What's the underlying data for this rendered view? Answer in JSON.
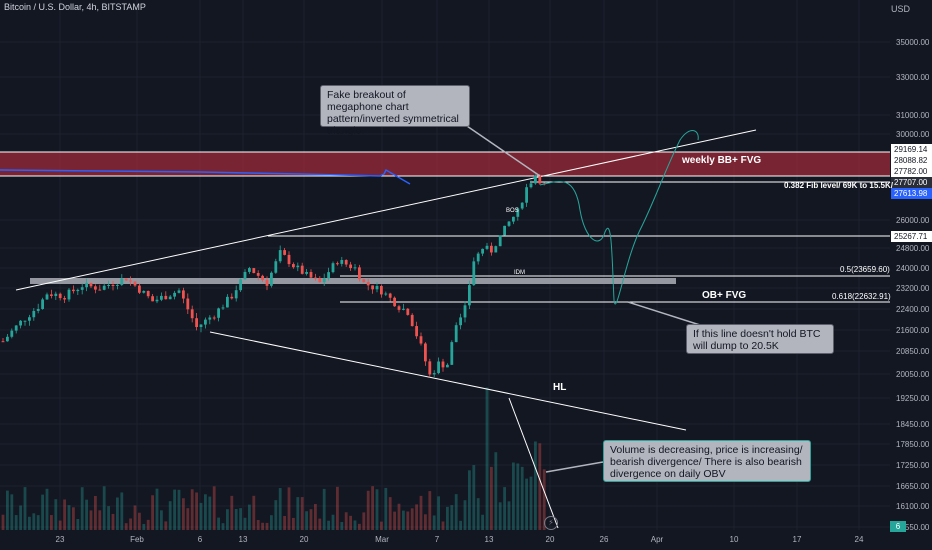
{
  "header": {
    "symbol": "Bitcoin / U.S. Dollar, 4h, BITSTAMP",
    "currency": "USD"
  },
  "colors": {
    "bg": "#131722",
    "up": "#26a69a",
    "down": "#ef5350",
    "zone": "#9c2a39",
    "white": "#ffffff"
  },
  "chart_data": {
    "type": "candlestick",
    "x_ticks": [
      "23",
      "Feb",
      "6",
      "13",
      "20",
      "Mar",
      "7",
      "13",
      "20",
      "26",
      "Apr",
      "10",
      "17",
      "24"
    ],
    "y_ticks": [
      35000,
      33000,
      31000,
      30000,
      26000,
      24800,
      24000,
      23200,
      22400,
      21600,
      20850,
      20050,
      19250,
      18450,
      17850,
      17250,
      16650,
      16100,
      15550
    ],
    "y_tick_labels": [
      "35000.00",
      "33000.00",
      "31000.00",
      "30000.00",
      "26000.00",
      "24800.00",
      "24000.00",
      "23200.00",
      "22400.00",
      "21600.00",
      "20850.00",
      "20050.00",
      "19250.00",
      "18450.00",
      "17850.00",
      "17250.00",
      "16650.00",
      "16100.00",
      "15550.00"
    ],
    "price_path": [
      [
        0,
        21200
      ],
      [
        4,
        21900
      ],
      [
        8,
        22500
      ],
      [
        10,
        23000
      ],
      [
        14,
        22900
      ],
      [
        18,
        23300
      ],
      [
        22,
        23200
      ],
      [
        28,
        23600
      ],
      [
        34,
        22700
      ],
      [
        40,
        23100
      ],
      [
        44,
        21700
      ],
      [
        48,
        22200
      ],
      [
        52,
        22900
      ],
      [
        56,
        24000
      ],
      [
        60,
        23400
      ],
      [
        63,
        24600
      ],
      [
        66,
        24100
      ],
      [
        69,
        23700
      ],
      [
        72,
        23400
      ],
      [
        76,
        24300
      ],
      [
        80,
        24000
      ],
      [
        82,
        23400
      ],
      [
        86,
        23100
      ],
      [
        90,
        22500
      ],
      [
        92,
        22300
      ],
      [
        95,
        21000
      ],
      [
        97,
        20000
      ],
      [
        99,
        20400
      ],
      [
        101,
        20400
      ],
      [
        103,
        21800
      ],
      [
        105,
        22400
      ],
      [
        107,
        24300
      ],
      [
        109,
        24800
      ],
      [
        111,
        24700
      ],
      [
        113,
        25300
      ],
      [
        115,
        25900
      ],
      [
        117,
        26400
      ],
      [
        119,
        27500
      ],
      [
        121,
        28100
      ],
      [
        123,
        27600
      ]
    ],
    "price_tags": [
      {
        "label": "29169.14",
        "value": 29169.14,
        "style": "white"
      },
      {
        "label": "28088.82",
        "value": 28088.82,
        "style": "white"
      },
      {
        "label": "27782.00",
        "value": 27782.0,
        "style": "white"
      },
      {
        "label": "27707.00",
        "value": 27707.0,
        "style": "dark"
      },
      {
        "label": "27613.98",
        "value": 27613.98,
        "style": "blue"
      },
      {
        "label": "25267.71",
        "value": 25267.71,
        "style": "white"
      }
    ],
    "volume_badge": "6"
  },
  "annotations": {
    "megaphone": "Fake breakout of megaphone chart pattern/inverted symmetrical triangle.",
    "weekly_fvg": "weekly BB+ FVG",
    "fib_382": "0.382 Fib level/ 69K to 15.5K/",
    "fib_50": "0.5(23659.60)",
    "ob_fvg": "OB+ FVG",
    "fib_618": "0.618(22632.91)",
    "hold_line": "If this line doesn't hold BTC will dump to 20.5K",
    "hl": "HL",
    "volume_note": "Volume is decreasing, price is increasing/ bearish divergence/ There is also bearish divergence on daily OBV",
    "bos": "BOS",
    "idm": "IDM"
  }
}
